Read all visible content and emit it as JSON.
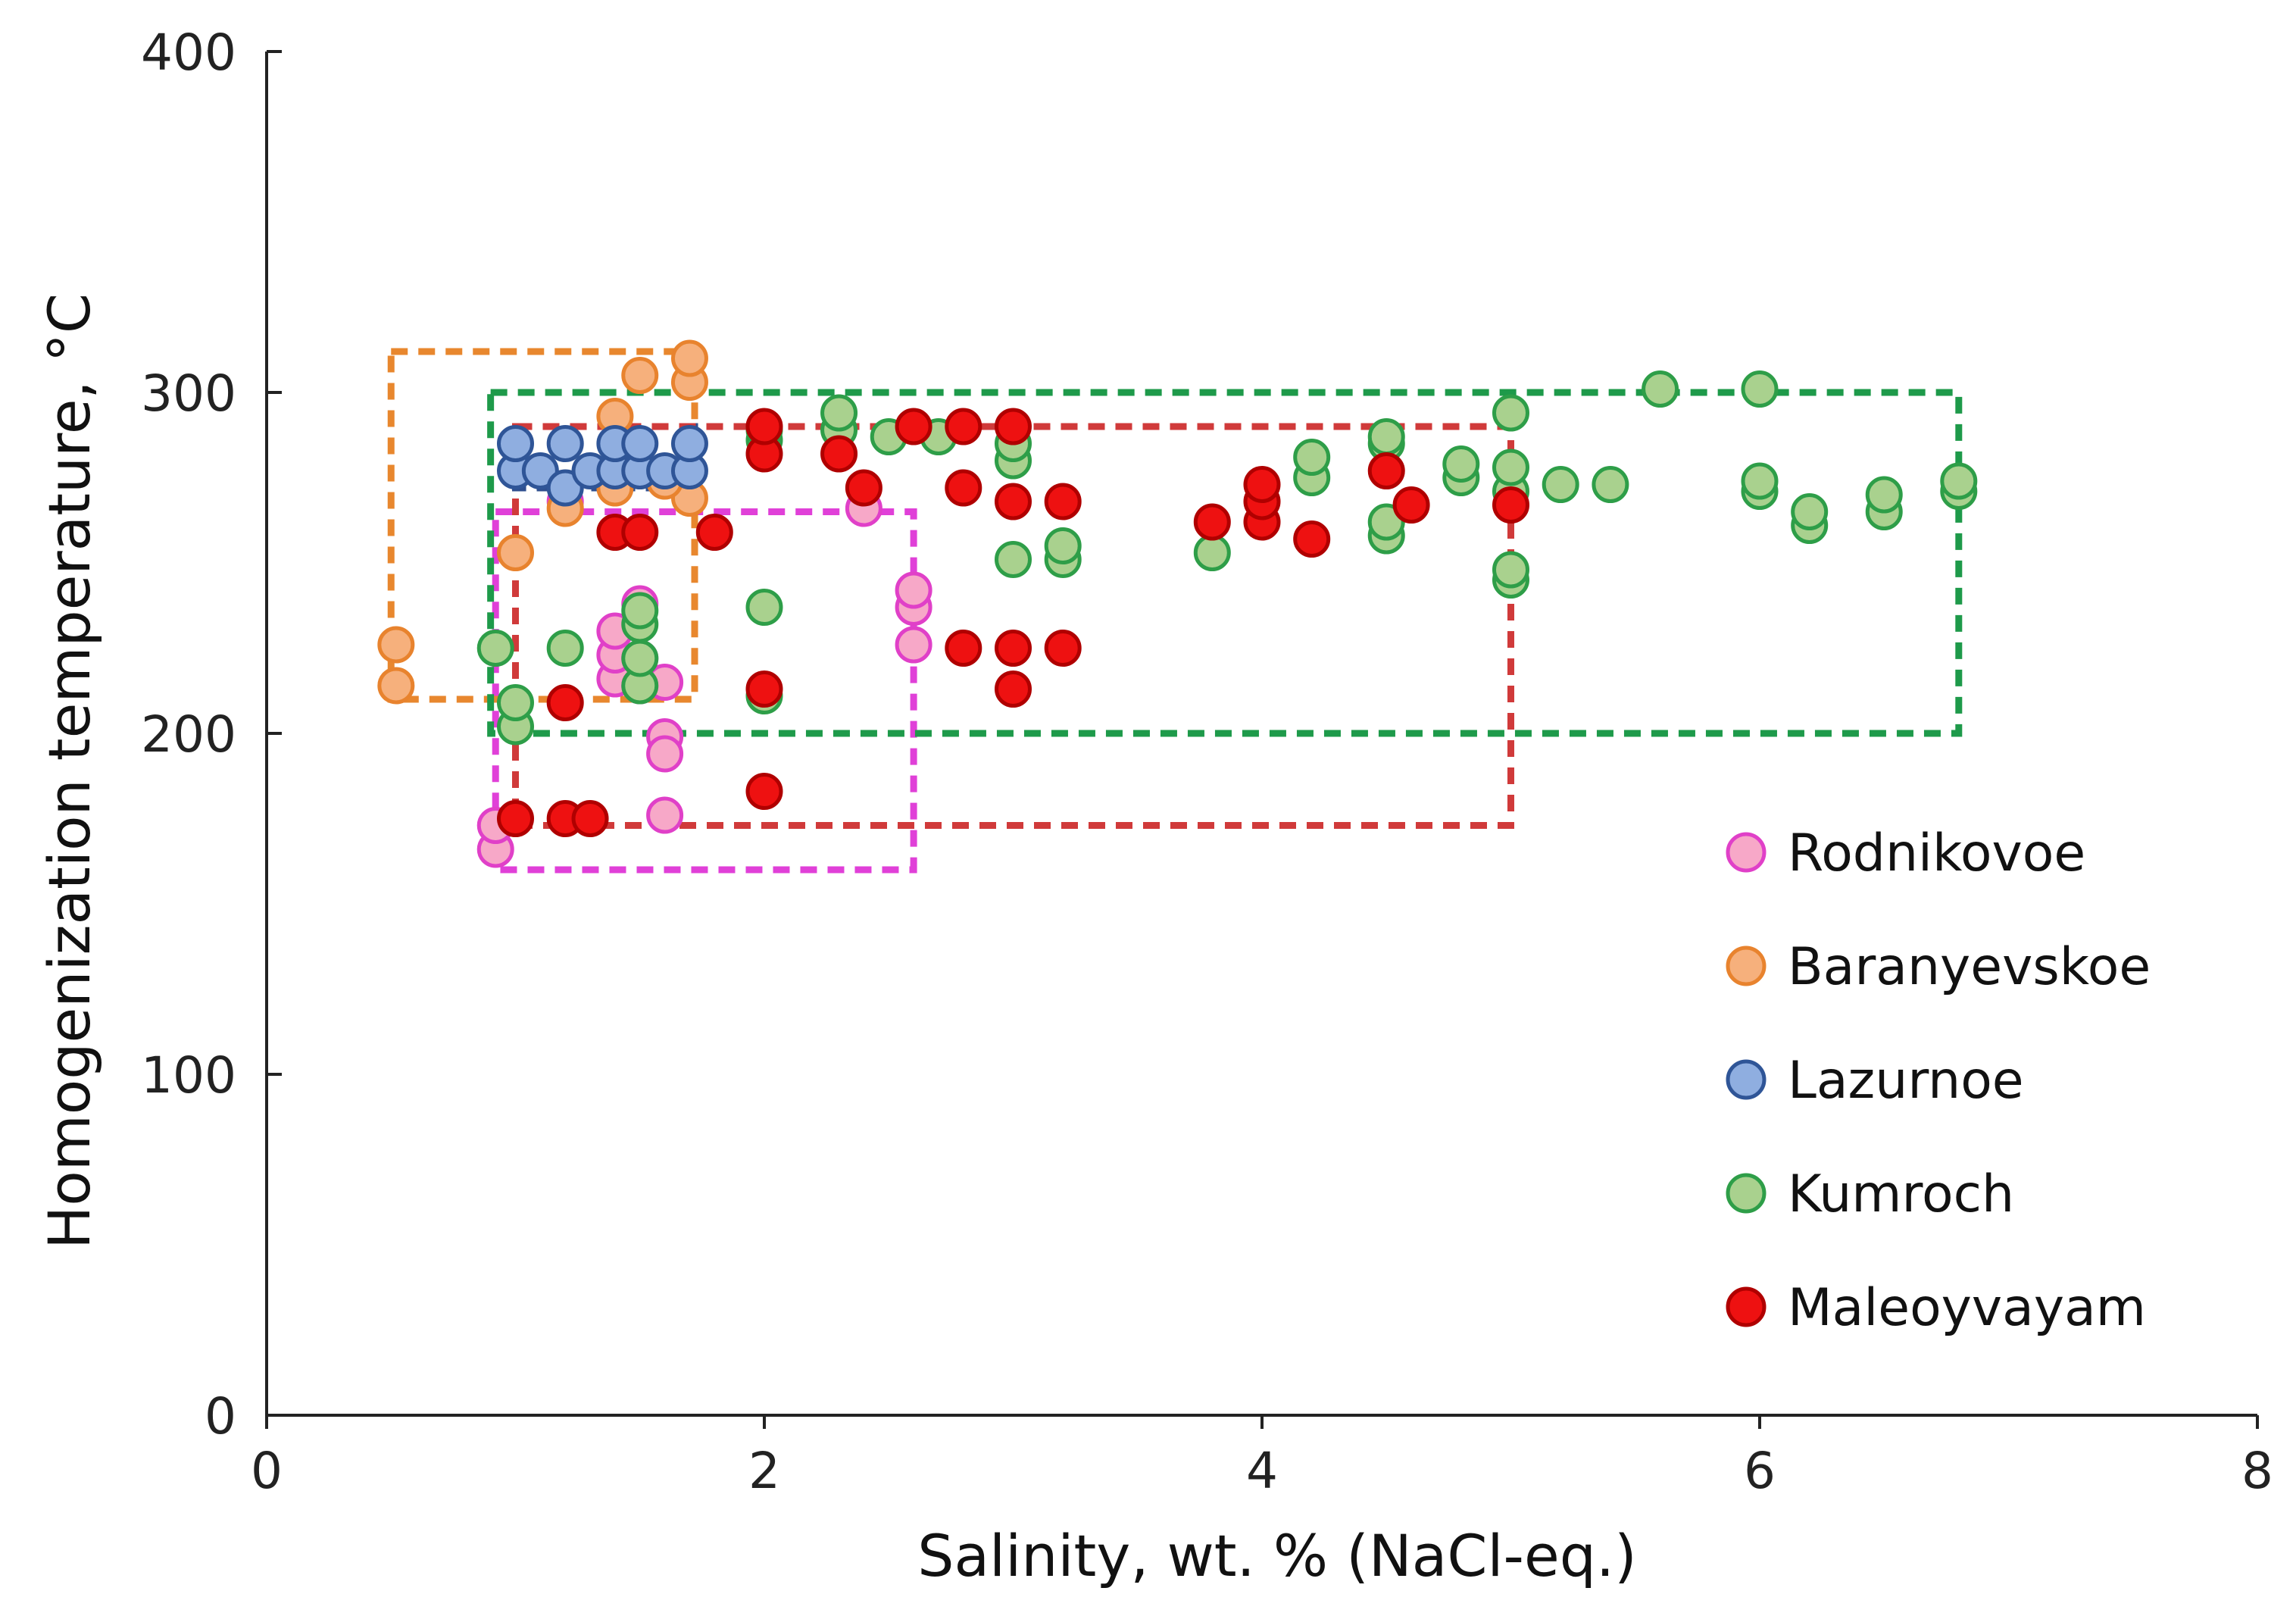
{
  "chart_data": {
    "type": "scatter",
    "xlabel": "Salinity, wt. % (NaCl-eq.)",
    "ylabel": "Homogenization temperature, °C",
    "xlim": [
      0,
      8
    ],
    "ylim": [
      0,
      400
    ],
    "x_ticks": [
      0,
      2,
      4,
      6,
      8
    ],
    "y_ticks": [
      0,
      100,
      200,
      300,
      400
    ],
    "x_tick_labels": [
      "0",
      "2",
      "4",
      "6",
      "8"
    ],
    "y_tick_labels": [
      "0",
      "100",
      "200",
      "300",
      "400"
    ],
    "legend_position": "bottom-right",
    "series": [
      {
        "name": "Rodnikovoe",
        "fill": "#F7A8C8",
        "stroke": "#E040C8",
        "box": {
          "x": [
            0.92,
            2.6
          ],
          "y": [
            160,
            265
          ],
          "color": "#E040D8"
        },
        "points": [
          [
            0.92,
            166
          ],
          [
            0.92,
            173
          ],
          [
            1.4,
            216
          ],
          [
            1.4,
            223
          ],
          [
            1.4,
            230
          ],
          [
            1.5,
            214
          ],
          [
            1.5,
            222
          ],
          [
            1.5,
            238
          ],
          [
            1.6,
            215
          ],
          [
            1.6,
            199
          ],
          [
            1.6,
            194
          ],
          [
            1.6,
            176
          ],
          [
            1.2,
            268
          ],
          [
            2.4,
            266
          ],
          [
            2.6,
            226
          ],
          [
            2.6,
            237
          ],
          [
            2.6,
            242
          ]
        ]
      },
      {
        "name": "Baranyevskoe",
        "fill": "#F6B07C",
        "stroke": "#E8832E",
        "box": {
          "x": [
            0.5,
            1.72
          ],
          "y": [
            210,
            312
          ],
          "color": "#E8872E"
        },
        "points": [
          [
            0.52,
            214
          ],
          [
            0.52,
            226
          ],
          [
            1.0,
            253
          ],
          [
            1.2,
            266
          ],
          [
            1.4,
            293
          ],
          [
            1.5,
            305
          ],
          [
            1.7,
            303
          ],
          [
            1.7,
            310
          ],
          [
            1.7,
            269
          ],
          [
            1.4,
            272
          ],
          [
            1.6,
            274
          ]
        ]
      },
      {
        "name": "Lazurnoe",
        "fill": "#8FAEE0",
        "stroke": "#2F5597",
        "box": {
          "x": [
            1.0,
            1.72
          ],
          "y": [
            272,
            290
          ],
          "color": "#2F4F8F"
        },
        "points": [
          [
            1.0,
            277
          ],
          [
            1.0,
            285
          ],
          [
            1.1,
            277
          ],
          [
            1.2,
            272
          ],
          [
            1.2,
            285
          ],
          [
            1.3,
            277
          ],
          [
            1.4,
            277
          ],
          [
            1.4,
            285
          ],
          [
            1.5,
            277
          ],
          [
            1.5,
            285
          ],
          [
            1.6,
            277
          ],
          [
            1.7,
            277
          ],
          [
            1.7,
            285
          ]
        ]
      },
      {
        "name": "Kumroch",
        "fill": "#A9D18E",
        "stroke": "#2E9E48",
        "box": {
          "x": [
            0.9,
            6.8
          ],
          "y": [
            200,
            300
          ],
          "color": "#1E9A4A"
        },
        "points": [
          [
            0.92,
            225
          ],
          [
            1.0,
            202
          ],
          [
            1.0,
            209
          ],
          [
            1.2,
            225
          ],
          [
            1.5,
            214
          ],
          [
            1.5,
            222
          ],
          [
            1.5,
            232
          ],
          [
            1.5,
            236
          ],
          [
            2.0,
            211
          ],
          [
            2.0,
            237
          ],
          [
            2.0,
            286
          ],
          [
            2.0,
            289
          ],
          [
            2.3,
            289
          ],
          [
            2.3,
            294
          ],
          [
            2.5,
            287
          ],
          [
            2.7,
            287
          ],
          [
            3.0,
            251
          ],
          [
            3.0,
            280
          ],
          [
            3.0,
            285
          ],
          [
            3.2,
            251
          ],
          [
            3.2,
            255
          ],
          [
            3.8,
            253
          ],
          [
            4.2,
            275
          ],
          [
            4.2,
            281
          ],
          [
            4.5,
            258
          ],
          [
            4.5,
            262
          ],
          [
            4.5,
            285
          ],
          [
            4.5,
            287
          ],
          [
            4.8,
            275
          ],
          [
            4.8,
            279
          ],
          [
            5.0,
            245
          ],
          [
            5.0,
            248
          ],
          [
            5.0,
            271
          ],
          [
            5.0,
            278
          ],
          [
            5.0,
            294
          ],
          [
            5.2,
            273
          ],
          [
            5.4,
            273
          ],
          [
            5.6,
            301
          ],
          [
            6.0,
            271
          ],
          [
            6.0,
            274
          ],
          [
            6.0,
            301
          ],
          [
            6.2,
            261
          ],
          [
            6.2,
            265
          ],
          [
            6.5,
            265
          ],
          [
            6.5,
            270
          ],
          [
            6.8,
            271
          ],
          [
            6.8,
            274
          ]
        ]
      },
      {
        "name": "Maleoyvayam",
        "fill": "#EE1111",
        "stroke": "#B00000",
        "box": {
          "x": [
            1.0,
            5.0
          ],
          "y": [
            173,
            290
          ],
          "color": "#D03A3A"
        },
        "points": [
          [
            1.0,
            175
          ],
          [
            1.2,
            175
          ],
          [
            1.3,
            175
          ],
          [
            1.2,
            209
          ],
          [
            1.4,
            259
          ],
          [
            1.5,
            259
          ],
          [
            1.8,
            259
          ],
          [
            2.0,
            183
          ],
          [
            2.0,
            213
          ],
          [
            2.0,
            282
          ],
          [
            2.0,
            290
          ],
          [
            2.3,
            282
          ],
          [
            2.4,
            272
          ],
          [
            2.6,
            290
          ],
          [
            2.8,
            290
          ],
          [
            2.8,
            225
          ],
          [
            2.8,
            272
          ],
          [
            3.0,
            213
          ],
          [
            3.0,
            225
          ],
          [
            3.0,
            268
          ],
          [
            3.0,
            290
          ],
          [
            3.2,
            225
          ],
          [
            3.2,
            268
          ],
          [
            3.8,
            262
          ],
          [
            4.0,
            262
          ],
          [
            4.0,
            268
          ],
          [
            4.0,
            273
          ],
          [
            4.2,
            257
          ],
          [
            4.5,
            277
          ],
          [
            4.6,
            267
          ],
          [
            5.0,
            267
          ]
        ]
      }
    ]
  }
}
